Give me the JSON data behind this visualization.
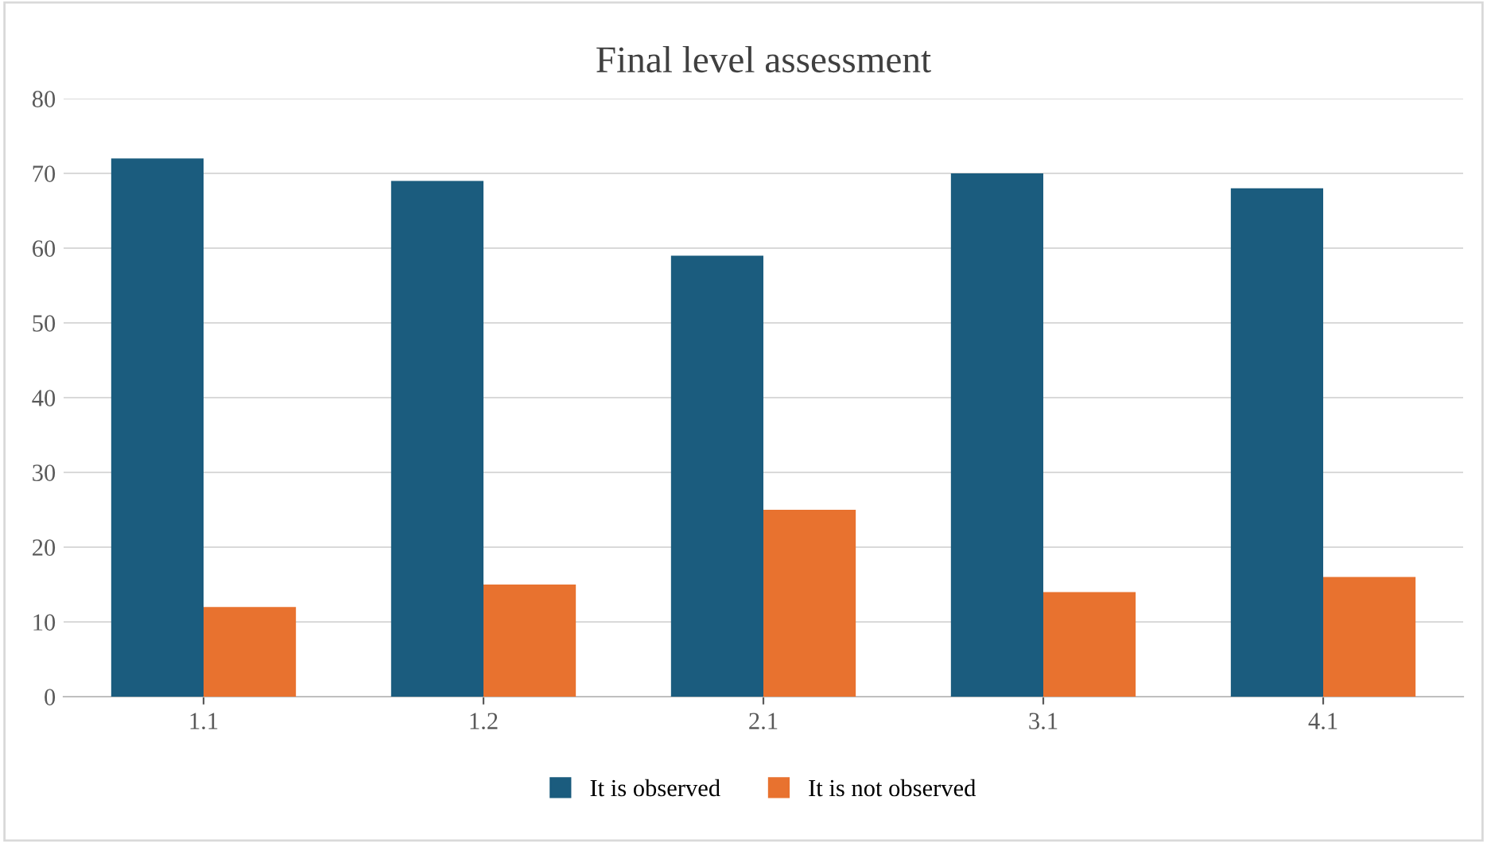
{
  "chart_data": {
    "type": "bar",
    "title": "Final level assessment",
    "categories": [
      "1.1",
      "1.2",
      "2.1",
      "3.1",
      "4.1"
    ],
    "series": [
      {
        "name": "It is observed",
        "color": "#1b5c7e",
        "values": [
          72,
          69,
          59,
          70,
          68
        ]
      },
      {
        "name": "It is not observed",
        "color": "#e8722f",
        "values": [
          12,
          15,
          25,
          14,
          16
        ]
      }
    ],
    "ylim": [
      0,
      80
    ],
    "yticks": [
      0,
      10,
      20,
      30,
      40,
      50,
      60,
      70,
      80
    ],
    "grid": "y",
    "legend": "bottom"
  }
}
